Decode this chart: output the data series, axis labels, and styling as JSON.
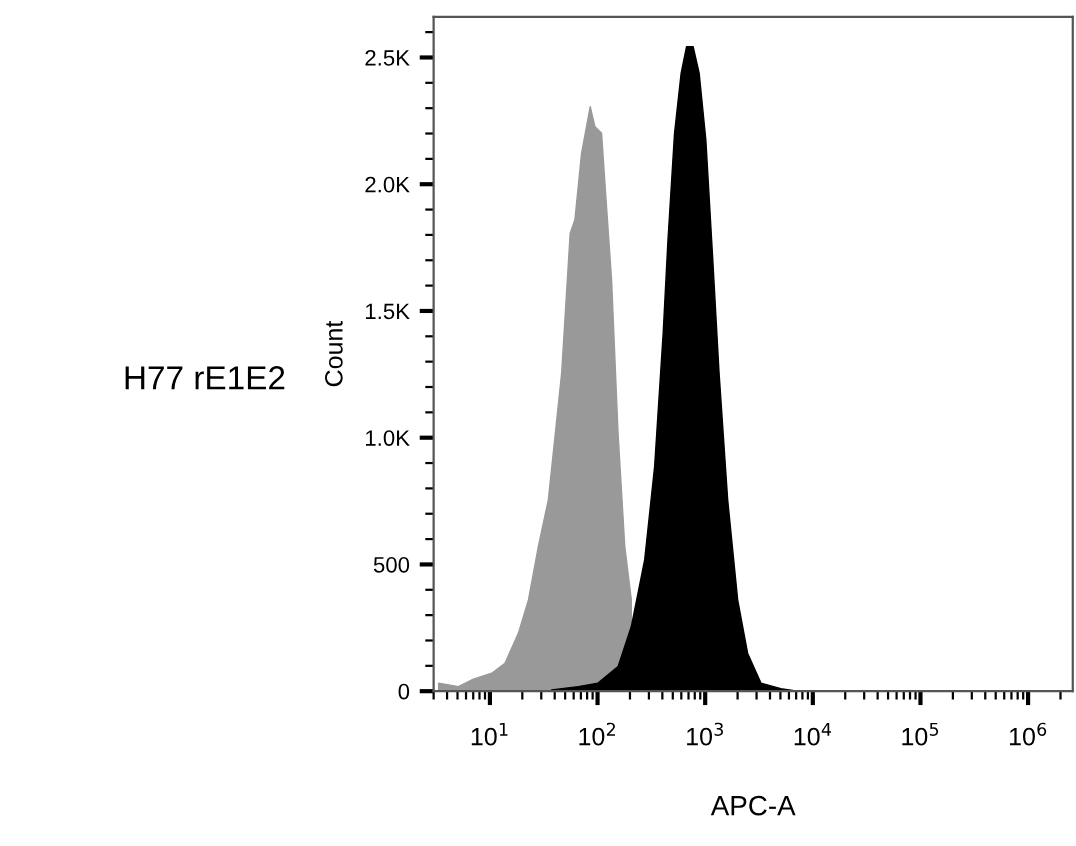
{
  "chart_data": {
    "type": "area",
    "xlabel": "APC-A",
    "ylabel": "Count",
    "annotations": [
      "H77 rE1E2"
    ],
    "log": "x",
    "xlim": [
      3,
      2600000
    ],
    "ylim": [
      0,
      2660
    ],
    "xticks": [
      {
        "value": 10,
        "label": "10$^{1}$"
      },
      {
        "value": 100,
        "label": "10$^{2}$"
      },
      {
        "value": 1000,
        "label": "10$^{3}$"
      },
      {
        "value": 10000,
        "label": "10$^{4}$"
      },
      {
        "value": 100000,
        "label": "10$^{5}$"
      },
      {
        "value": 1000000,
        "label": "10$^{6}$"
      }
    ],
    "yticks": [
      0,
      500,
      {
        "value": 1000,
        "label": "1.0K"
      },
      {
        "value": 1500,
        "label": "1.5K"
      },
      {
        "value": 2000,
        "label": "2.0K"
      },
      {
        "value": 2500,
        "label": "2.5K"
      }
    ],
    "grid": false,
    "legend": false,
    "series": [
      {
        "color": "#999999",
        "x": [
          3.34,
          5.1,
          6.8,
          10.4,
          13.8,
          18.4,
          22.8,
          28.2,
          34.9,
          46.4,
          55.7,
          61.6,
          71.0,
          85.5,
          94.4,
          109,
          120,
          135,
          155,
          179,
          206
        ],
        "values": [
          32,
          18,
          45,
          71,
          110,
          229,
          360,
          571,
          755,
          1255,
          1807,
          1860,
          2122,
          2306,
          2228,
          2201,
          1938,
          1623,
          1018,
          571,
          360
        ]
      },
      {
        "color": "#000000",
        "x": [
          37.4,
          66.1,
          101,
          155,
          206,
          274,
          339,
          407,
          451,
          519,
          598,
          671,
          773,
          879,
          1014,
          1167,
          1346,
          1618,
          2004,
          2477,
          3296,
          5047,
          7194
        ],
        "values": [
          5,
          18,
          32,
          97,
          255,
          518,
          886,
          1412,
          1780,
          2201,
          2438,
          2543,
          2543,
          2438,
          2175,
          1728,
          1255,
          755,
          360,
          150,
          32,
          10,
          0
        ]
      }
    ]
  }
}
